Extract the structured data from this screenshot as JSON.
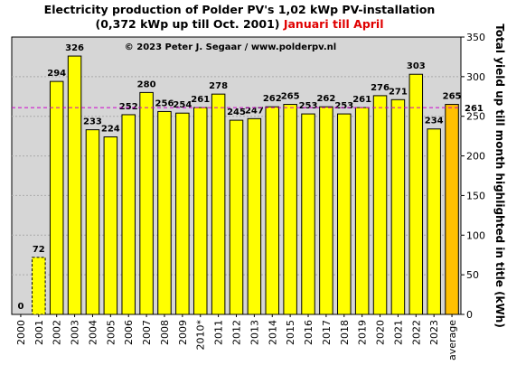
{
  "title": {
    "line1": "Electricity production  of Polder  PV's  1,02 kWp PV-installation",
    "line2_black": "(0,372 kWp up till Oct. 2001)",
    "line2_red": "Januari till April"
  },
  "copyright": "© 2023 Peter J. Segaar / www.polderpv.nl",
  "colors": {
    "bar": "#ffff00",
    "average_bar": "#ffc000",
    "plot_bg": "#d6d6d6",
    "reference_line": "#cc00cc",
    "muted_label": "#909090",
    "average_label": "#dd0000"
  },
  "chart_data": {
    "type": "bar",
    "categories": [
      "2000",
      "2001",
      "2002",
      "2003",
      "2004",
      "2005",
      "2006",
      "2007",
      "2008",
      "2009",
      "2010*",
      "2011",
      "2012",
      "2013",
      "2014",
      "2015",
      "2016",
      "2017",
      "2018",
      "2019",
      "2020",
      "2021",
      "2022",
      "2023",
      "average"
    ],
    "values": [
      0,
      72,
      294,
      326,
      233,
      224,
      252,
      280,
      256,
      254,
      261,
      278,
      245,
      247,
      262,
      265,
      253,
      262,
      253,
      261,
      276,
      271,
      303,
      234,
      265
    ],
    "dashed_outline_categories": [
      "2001"
    ],
    "ylabel": "Total yield up till month highlighted in title (kWh)",
    "ylim": [
      0,
      350
    ],
    "yticks": [
      0,
      50,
      100,
      150,
      200,
      250,
      300,
      350
    ],
    "y_axis_side": "right",
    "grid": true,
    "reference_line": {
      "value": 261,
      "label": "261"
    }
  }
}
